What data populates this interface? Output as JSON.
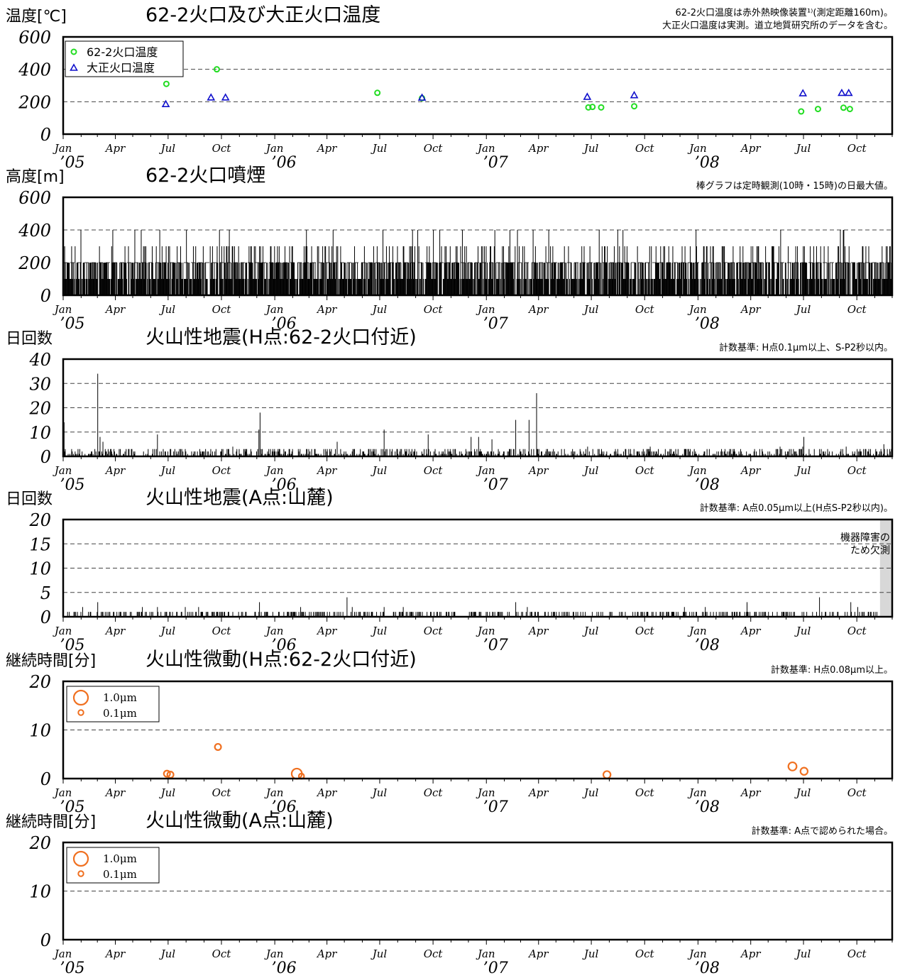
{
  "colors": {
    "green": "#22dd22",
    "blue": "#1010cc",
    "orange": "#f07020",
    "bar": "#000000",
    "grid": "#444444",
    "gap": "#d8d8d8"
  },
  "x_axis": {
    "start": "2005-01-01",
    "end": "2008-12-01",
    "month_labels": [
      "Jan",
      "Apr",
      "Jul",
      "Oct"
    ],
    "year_labels": [
      "’05",
      "’06",
      "’07",
      "’08"
    ]
  },
  "chart_data": [
    {
      "id": "temp",
      "type": "scatter",
      "title": "62-2火口及び大正火口温度",
      "ylabel": "温度[℃]",
      "note": [
        "62-2火口温度は赤外熱映像装置¹⁾(測定距離160m)。",
        "大正火口温度は実測。道立地質研究所のデータを含む。"
      ],
      "ylim": [
        0,
        600
      ],
      "yticks": [
        "0",
        "200",
        "400",
        "600"
      ],
      "grid": [
        200,
        400
      ],
      "legend": [
        {
          "name": "62-2火口温度",
          "marker": "circle",
          "color": "green"
        },
        {
          "name": "大正火口温度",
          "marker": "triangle",
          "color": "blue"
        }
      ],
      "series": [
        {
          "name": "62-2火口温度",
          "points": [
            [
              "2005-06-28",
              310
            ],
            [
              "2005-09-23",
              400
            ],
            [
              "2006-06-27",
              255
            ],
            [
              "2006-09-12",
              222
            ],
            [
              "2007-06-26",
              165
            ],
            [
              "2007-07-03",
              168
            ],
            [
              "2007-07-18",
              165
            ],
            [
              "2007-09-13",
              172
            ],
            [
              "2008-06-27",
              140
            ],
            [
              "2008-07-26",
              155
            ],
            [
              "2008-09-08",
              163
            ],
            [
              "2008-09-19",
              155
            ]
          ]
        },
        {
          "name": "大正火口温度",
          "points": [
            [
              "2005-06-27",
              183
            ],
            [
              "2005-09-13",
              224
            ],
            [
              "2005-10-08",
              224
            ],
            [
              "2006-09-12",
              223
            ],
            [
              "2007-06-24",
              228
            ],
            [
              "2007-09-13",
              238
            ],
            [
              "2008-06-30",
              250
            ],
            [
              "2008-09-05",
              252
            ],
            [
              "2008-09-17",
              252
            ]
          ]
        }
      ]
    },
    {
      "id": "plume",
      "type": "bar",
      "title": "62-2火口噴煙",
      "ylabel": "高度[m]",
      "note": [
        "棒グラフは定時観測(10時・15時)の日最大値。"
      ],
      "ylim": [
        0,
        600
      ],
      "yticks": [
        "0",
        "200",
        "400",
        "600"
      ],
      "grid": [
        200,
        400
      ],
      "gen": {
        "seed": 11,
        "levels": [
          0,
          100,
          200,
          300,
          400
        ]
      }
    },
    {
      "id": "eqH",
      "type": "bar",
      "title": "火山性地震(H点:62-2火口付近)",
      "ylabel": "日回数",
      "note": [
        "計数基準: H点0.1μm以上、S-P2秒以内。"
      ],
      "ylim": [
        0,
        40
      ],
      "yticks": [
        "0",
        "10",
        "20",
        "30",
        "40"
      ],
      "grid": [
        10,
        20,
        30
      ],
      "gen": {
        "seed": 23,
        "base": 3
      },
      "spikes": [
        [
          "2005-01-02",
          14
        ],
        [
          "2005-03-01",
          34
        ],
        [
          "2005-03-05",
          8
        ],
        [
          "2005-03-10",
          6
        ],
        [
          "2005-06-12",
          9
        ],
        [
          "2005-10-20",
          4
        ],
        [
          "2005-12-04",
          11
        ],
        [
          "2005-12-06",
          18
        ],
        [
          "2006-04-18",
          6
        ],
        [
          "2006-07-08",
          11
        ],
        [
          "2006-09-22",
          9
        ],
        [
          "2006-12-05",
          8
        ],
        [
          "2006-12-18",
          8
        ],
        [
          "2007-01-10",
          7
        ],
        [
          "2007-02-20",
          15
        ],
        [
          "2007-03-15",
          15
        ],
        [
          "2007-03-28",
          26
        ],
        [
          "2008-07-01",
          8
        ],
        [
          "2008-09-12",
          4
        ],
        [
          "2008-11-16",
          5
        ]
      ]
    },
    {
      "id": "eqA",
      "type": "bar",
      "title": "火山性地震(A点:山麓)",
      "ylabel": "日回数",
      "note": [
        "計数基準: A点0.05μm以上(H点S-P2秒以内)。"
      ],
      "ylim": [
        0,
        20
      ],
      "yticks": [
        "0",
        "5",
        "10",
        "15",
        "20"
      ],
      "grid": [
        5,
        10,
        15
      ],
      "gen": {
        "seed": 37,
        "base": 1
      },
      "spikes": [
        [
          "2005-03-01",
          3
        ],
        [
          "2005-12-05",
          3
        ],
        [
          "2006-05-05",
          4
        ],
        [
          "2007-02-20",
          3
        ],
        [
          "2008-03-25",
          3
        ],
        [
          "2008-07-28",
          4
        ],
        [
          "2008-09-20",
          3
        ]
      ],
      "missing": {
        "from": "2008-11-10",
        "to": "2008-12-01",
        "label": [
          "機器障害の",
          "ため欠測"
        ]
      }
    },
    {
      "id": "tremH",
      "type": "scatter",
      "title": "火山性微動(H点:62-2火口付近)",
      "ylabel": "継続時間[分]",
      "note": [
        "計数基準: H点0.08μm以上。"
      ],
      "ylim": [
        0,
        20
      ],
      "yticks": [
        "0",
        "10",
        "20"
      ],
      "grid": [
        10
      ],
      "legend": [
        {
          "name": "1.0μm",
          "amplitude": 1.0
        },
        {
          "name": "0.1μm",
          "amplitude": 0.1
        }
      ],
      "points": [
        {
          "date": "2005-06-29",
          "value": 1.0,
          "amplitude": 0.2
        },
        {
          "date": "2005-07-05",
          "value": 0.8,
          "amplitude": 0.2
        },
        {
          "date": "2005-09-25",
          "value": 6.5,
          "amplitude": 0.2
        },
        {
          "date": "2006-02-08",
          "value": 1.0,
          "amplitude": 0.6
        },
        {
          "date": "2006-02-16",
          "value": 0.5,
          "amplitude": 0.1
        },
        {
          "date": "2007-07-28",
          "value": 0.8,
          "amplitude": 0.3
        },
        {
          "date": "2008-06-12",
          "value": 2.5,
          "amplitude": 0.4
        },
        {
          "date": "2008-07-02",
          "value": 1.5,
          "amplitude": 0.3
        }
      ]
    },
    {
      "id": "tremA",
      "type": "scatter",
      "title": "火山性微動(A点:山麓)",
      "ylabel": "継続時間[分]",
      "note": [
        "計数基準: A点で認められた場合。"
      ],
      "ylim": [
        0,
        20
      ],
      "yticks": [
        "0",
        "10",
        "20"
      ],
      "grid": [
        10
      ],
      "legend": [
        {
          "name": "1.0μm",
          "amplitude": 1.0
        },
        {
          "name": "0.1μm",
          "amplitude": 0.1
        }
      ],
      "points": []
    }
  ]
}
